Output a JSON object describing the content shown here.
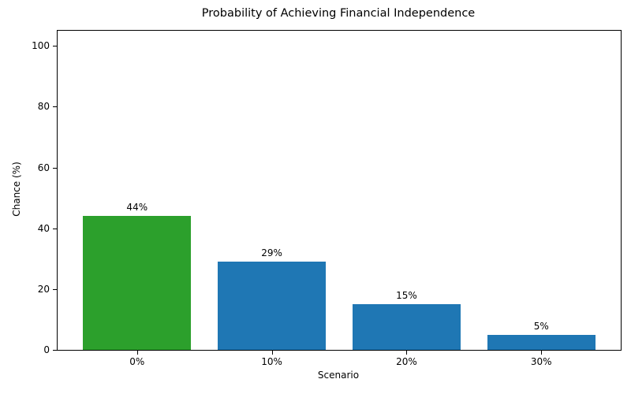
{
  "chart_data": {
    "type": "bar",
    "title": "Probability of Achieving Financial Independence",
    "xlabel": "Scenario",
    "ylabel": "Chance (%)",
    "categories": [
      "0%",
      "10%",
      "20%",
      "30%"
    ],
    "values": [
      44,
      29,
      15,
      5
    ],
    "bar_labels": [
      "44%",
      "29%",
      "15%",
      "5%"
    ],
    "bar_colors": [
      "#2ca02c",
      "#1f77b4",
      "#1f77b4",
      "#1f77b4"
    ],
    "yticks": [
      0,
      20,
      40,
      60,
      80,
      100
    ],
    "ylim": [
      0,
      105
    ],
    "xlim": [
      -0.59,
      3.59
    ],
    "bar_width": 0.8,
    "grid": false,
    "legend": "none",
    "spine_color": "#000000",
    "background": "#ffffff"
  }
}
